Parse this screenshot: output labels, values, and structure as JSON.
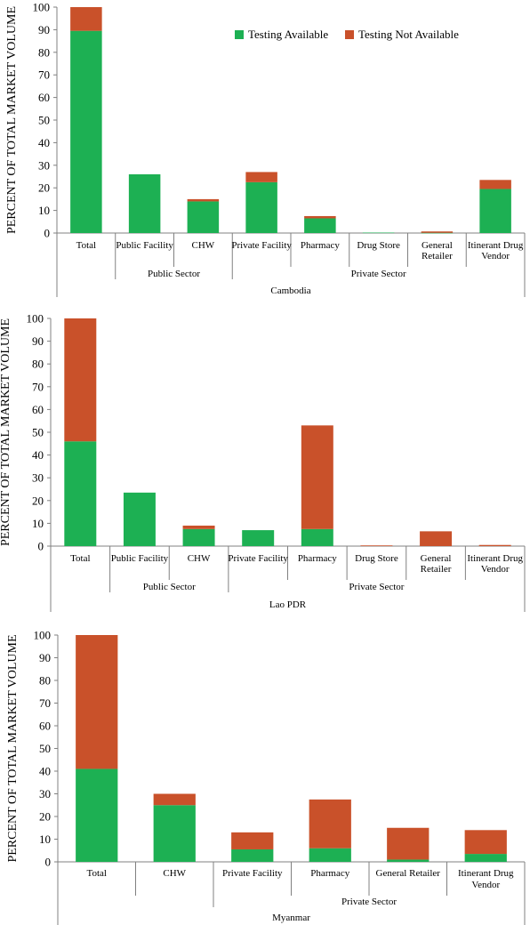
{
  "colors": {
    "available": "#1DB053",
    "not_available": "#C9512A"
  },
  "chart_data": [
    {
      "type": "bar",
      "stacked": true,
      "country": "Cambodia",
      "ylabel": "PERCENT OF TOTAL MARKET VOLUME",
      "ylim": [
        0,
        100
      ],
      "yticks": [
        0,
        10,
        20,
        30,
        40,
        50,
        60,
        70,
        80,
        90,
        100
      ],
      "legend": {
        "position": "top-right"
      },
      "categories": [
        "Total",
        "Public Facility",
        "CHW",
        "Private Facility",
        "Pharmacy",
        "Drug Store",
        "General Retailer",
        "Itinerant Drug Vendor"
      ],
      "category_lines": [
        [
          "Total"
        ],
        [
          "Public Facility"
        ],
        [
          "CHW"
        ],
        [
          "Private Facility"
        ],
        [
          "Pharmacy"
        ],
        [
          "Drug Store"
        ],
        [
          "General",
          "Retailer"
        ],
        [
          "Itinerant Drug",
          "Vendor"
        ]
      ],
      "groups": [
        {
          "label": "Public Sector",
          "categories": [
            "Public Facility",
            "CHW"
          ]
        },
        {
          "label": "Private Sector",
          "categories": [
            "Private Facility",
            "Pharmacy",
            "Drug Store",
            "General Retailer",
            "Itinerant Drug Vendor"
          ]
        }
      ],
      "series": [
        {
          "name": "Testing Available",
          "values": [
            89.5,
            26,
            14,
            22.5,
            6.5,
            0.2,
            0.1,
            19.5
          ]
        },
        {
          "name": "Testing Not Available",
          "values": [
            10.5,
            0,
            1,
            4.5,
            1,
            0,
            0.6,
            4
          ]
        }
      ]
    },
    {
      "type": "bar",
      "stacked": true,
      "country": "Lao PDR",
      "ylabel": "PERCENT OF TOTAL MARKET VOLUME",
      "ylim": [
        0,
        100
      ],
      "yticks": [
        0,
        10,
        20,
        30,
        40,
        50,
        60,
        70,
        80,
        90,
        100
      ],
      "categories": [
        "Total",
        "Public Facility",
        "CHW",
        "Private Facility",
        "Pharmacy",
        "Drug Store",
        "General Retailer",
        "Itinerant Drug Vendor"
      ],
      "category_lines": [
        [
          "Total"
        ],
        [
          "Public Facility"
        ],
        [
          "CHW"
        ],
        [
          "Private Facility"
        ],
        [
          "Pharmacy"
        ],
        [
          "Drug Store"
        ],
        [
          "General",
          "Retailer"
        ],
        [
          "Itinerant Drug",
          "Vendor"
        ]
      ],
      "groups": [
        {
          "label": "Public Sector",
          "categories": [
            "Public Facility",
            "CHW"
          ]
        },
        {
          "label": "Private Sector",
          "categories": [
            "Private Facility",
            "Pharmacy",
            "Drug Store",
            "General Retailer",
            "Itinerant Drug Vendor"
          ]
        }
      ],
      "series": [
        {
          "name": "Testing Available",
          "values": [
            46,
            23.5,
            7.5,
            7,
            7.5,
            0,
            0,
            0
          ]
        },
        {
          "name": "Testing Not Available",
          "values": [
            54,
            0,
            1.5,
            0,
            45.5,
            0.3,
            6.5,
            0.5
          ]
        }
      ]
    },
    {
      "type": "bar",
      "stacked": true,
      "country": "Myanmar",
      "ylabel": "PERCENT OF TOTAL MARKET VOLUME",
      "ylim": [
        0,
        100
      ],
      "yticks": [
        0,
        10,
        20,
        30,
        40,
        50,
        60,
        70,
        80,
        90,
        100
      ],
      "categories": [
        "Total",
        "CHW",
        "Private Facility",
        "Pharmacy",
        "General Retailer",
        "Itinerant Drug Vendor"
      ],
      "category_lines": [
        [
          "Total"
        ],
        [
          "CHW"
        ],
        [
          "Private Facility"
        ],
        [
          "Pharmacy"
        ],
        [
          "General Retailer"
        ],
        [
          "Itinerant Drug",
          "Vendor"
        ]
      ],
      "groups": [
        {
          "label": "Private Sector",
          "categories": [
            "Private Facility",
            "Pharmacy",
            "General Retailer",
            "Itinerant Drug Vendor"
          ]
        }
      ],
      "series": [
        {
          "name": "Testing Available",
          "values": [
            41,
            25,
            5.5,
            6,
            1,
            3.5
          ]
        },
        {
          "name": "Testing Not Available",
          "values": [
            59,
            5,
            7.5,
            21.5,
            14,
            10.5
          ]
        }
      ]
    }
  ]
}
